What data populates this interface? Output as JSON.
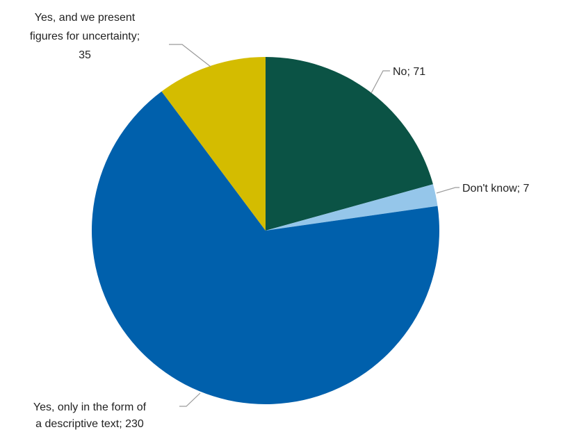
{
  "chart_data": {
    "type": "pie",
    "title": "",
    "slices": [
      {
        "label": "No",
        "value": 71,
        "color": "#0b5345",
        "display": [
          "No; 71"
        ]
      },
      {
        "label": "Don't know",
        "value": 7,
        "color": "#95c6ea",
        "display": [
          "Don't know; 7"
        ]
      },
      {
        "label": "Yes, only in the form of a descriptive text",
        "value": 230,
        "color": "#0060ac",
        "display": [
          "Yes, only in the form of",
          "a descriptive text; 230"
        ]
      },
      {
        "label": "Yes, and we present figures for uncertainty",
        "value": 35,
        "color": "#d4bc00",
        "display": [
          "Yes, and we present",
          "figures for uncertainty;",
          "35"
        ]
      }
    ],
    "start_angle": "12 o'clock",
    "direction": "clockwise",
    "legend": "none",
    "data_labels": "outside with leader lines"
  }
}
